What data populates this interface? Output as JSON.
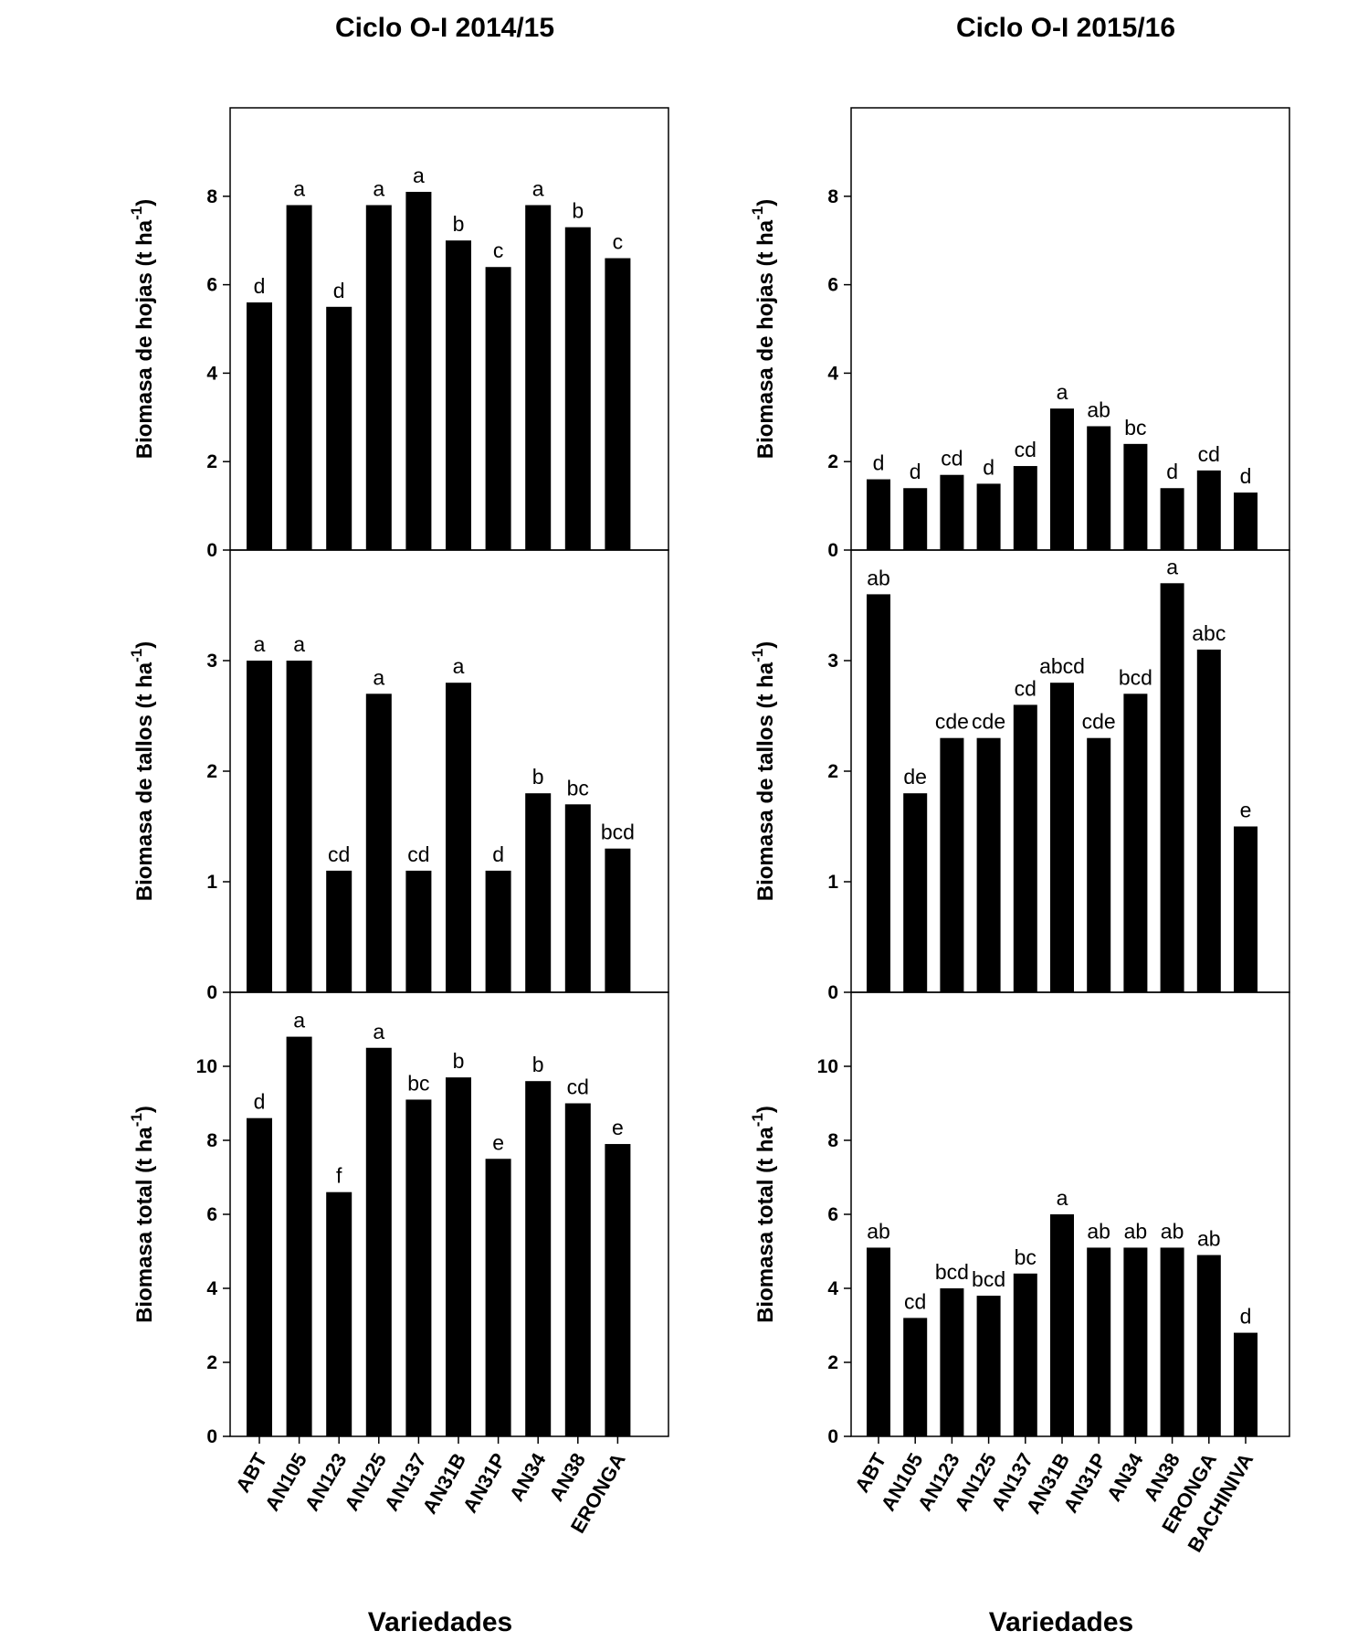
{
  "chart_data": [
    {
      "type": "bar",
      "title": "Ciclo O-I 2014/15",
      "ylabel": "Biomasa de hojas (t ha-1)",
      "ylim": [
        0,
        10
      ],
      "yticks": [
        0,
        2,
        4,
        6,
        8
      ],
      "categories": [
        "ABT",
        "AN105",
        "AN123",
        "AN125",
        "AN137",
        "AN31B",
        "AN31P",
        "AN34",
        "AN38",
        "ERONGA"
      ],
      "values": [
        5.6,
        7.8,
        5.5,
        7.8,
        8.1,
        7.0,
        6.4,
        7.8,
        7.3,
        6.6
      ],
      "labels": [
        "d",
        "a",
        "d",
        "a",
        "a",
        "b",
        "c",
        "a",
        "b",
        "c"
      ]
    },
    {
      "type": "bar",
      "ylabel": "Biomasa de tallos (t ha-1)",
      "ylim": [
        0,
        4
      ],
      "yticks": [
        0,
        1,
        2,
        3
      ],
      "categories": [
        "ABT",
        "AN105",
        "AN123",
        "AN125",
        "AN137",
        "AN31B",
        "AN31P",
        "AN34",
        "AN38",
        "ERONGA"
      ],
      "values": [
        3.0,
        3.0,
        1.1,
        2.7,
        1.1,
        2.8,
        1.1,
        1.8,
        1.7,
        1.3
      ],
      "labels": [
        "a",
        "a",
        "cd",
        "a",
        "cd",
        "a",
        "d",
        "b",
        "bc",
        "bcd"
      ]
    },
    {
      "type": "bar",
      "ylabel": "Biomasa total (t ha-1)",
      "xlabel": "Variedades",
      "ylim": [
        0,
        12
      ],
      "yticks": [
        0,
        2,
        4,
        6,
        8,
        10
      ],
      "categories": [
        "ABT",
        "AN105",
        "AN123",
        "AN125",
        "AN137",
        "AN31B",
        "AN31P",
        "AN34",
        "AN38",
        "ERONGA"
      ],
      "values": [
        8.6,
        10.8,
        6.6,
        10.5,
        9.1,
        9.7,
        7.5,
        9.6,
        9.0,
        7.9
      ],
      "labels": [
        "d",
        "a",
        "f",
        "a",
        "bc",
        "b",
        "e",
        "b",
        "cd",
        "e"
      ]
    },
    {
      "type": "bar",
      "title": "Ciclo O-I 2015/16",
      "ylabel": "Biomasa de hojas (t ha-1)",
      "ylim": [
        0,
        10
      ],
      "yticks": [
        0,
        2,
        4,
        6,
        8
      ],
      "categories": [
        "ABT",
        "AN105",
        "AN123",
        "AN125",
        "AN137",
        "AN31B",
        "AN31P",
        "AN34",
        "AN38",
        "ERONGA",
        "BACHINIVA"
      ],
      "values": [
        1.6,
        1.4,
        1.7,
        1.5,
        1.9,
        3.2,
        2.8,
        2.4,
        1.4,
        1.8,
        1.3
      ],
      "labels": [
        "d",
        "d",
        "cd",
        "d",
        "cd",
        "a",
        "ab",
        "bc",
        "d",
        "cd",
        "d"
      ]
    },
    {
      "type": "bar",
      "ylabel": "Biomasa de tallos (t ha-1)",
      "ylim": [
        0,
        4
      ],
      "yticks": [
        0,
        1,
        2,
        3
      ],
      "categories": [
        "ABT",
        "AN105",
        "AN123",
        "AN125",
        "AN137",
        "AN31B",
        "AN31P",
        "AN34",
        "AN38",
        "ERONGA",
        "BACHINIVA"
      ],
      "values": [
        3.6,
        1.8,
        2.3,
        2.3,
        2.6,
        2.8,
        2.3,
        2.7,
        3.7,
        3.1,
        1.5
      ],
      "labels": [
        "ab",
        "de",
        "cde",
        "cde",
        "cd",
        "abcd",
        "cde",
        "bcd",
        "a",
        "abc",
        "e"
      ]
    },
    {
      "type": "bar",
      "ylabel": "Biomasa total (t ha-1)",
      "xlabel": "Variedades",
      "ylim": [
        0,
        12
      ],
      "yticks": [
        0,
        2,
        4,
        6,
        8,
        10
      ],
      "categories": [
        "ABT",
        "AN105",
        "AN123",
        "AN125",
        "AN137",
        "AN31B",
        "AN31P",
        "AN34",
        "AN38",
        "ERONGA",
        "BACHINIVA"
      ],
      "values": [
        5.1,
        3.2,
        4.0,
        3.8,
        4.4,
        6.0,
        5.1,
        5.1,
        5.1,
        4.9,
        2.8
      ],
      "labels": [
        "ab",
        "cd",
        "bcd",
        "bcd",
        "bc",
        "a",
        "ab",
        "ab",
        "ab",
        "ab",
        "d"
      ]
    }
  ]
}
